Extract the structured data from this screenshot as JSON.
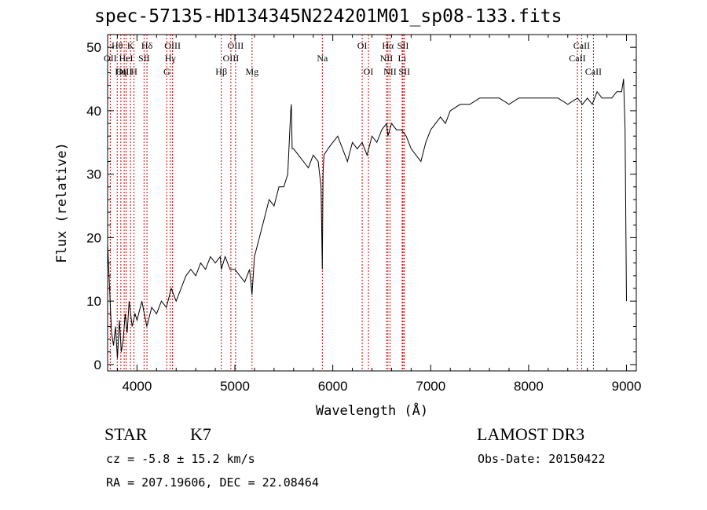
{
  "chart_data": {
    "type": "line",
    "title": "spec-57135-HD134345N224201M01_sp08-133.fits",
    "xlabel": "Wavelength (Å)",
    "ylabel": "Flux (relative)",
    "xlim": [
      3700,
      9100
    ],
    "ylim": [
      -1,
      52
    ],
    "xticks": [
      4000,
      5000,
      6000,
      7000,
      8000,
      9000
    ],
    "yticks": [
      0,
      10,
      20,
      30,
      40,
      50
    ],
    "grid": false,
    "series": [
      {
        "color": "#000000",
        "x": [
          3700,
          3720,
          3740,
          3760,
          3780,
          3800,
          3820,
          3840,
          3860,
          3880,
          3900,
          3920,
          3950,
          3980,
          4000,
          4050,
          4100,
          4150,
          4200,
          4250,
          4300,
          4350,
          4400,
          4450,
          4500,
          4550,
          4600,
          4650,
          4700,
          4750,
          4800,
          4850,
          4861,
          4900,
          4950,
          5000,
          5050,
          5100,
          5150,
          5175,
          5200,
          5250,
          5300,
          5350,
          5400,
          5450,
          5500,
          5540,
          5570,
          5577,
          5585,
          5600,
          5650,
          5700,
          5750,
          5800,
          5850,
          5880,
          5893,
          5900,
          5910,
          5950,
          6000,
          6050,
          6100,
          6150,
          6200,
          6250,
          6300,
          6350,
          6400,
          6450,
          6500,
          6550,
          6563,
          6600,
          6650,
          6700,
          6750,
          6800,
          6850,
          6900,
          6950,
          7000,
          7050,
          7100,
          7150,
          7200,
          7300,
          7400,
          7500,
          7600,
          7700,
          7800,
          7900,
          8000,
          8100,
          8200,
          8300,
          8400,
          8500,
          8550,
          8600,
          8650,
          8700,
          8750,
          8800,
          8850,
          8900,
          8950,
          8970,
          8985,
          9000
        ],
        "y": [
          19,
          12,
          5,
          3,
          6,
          1,
          7,
          2,
          4,
          8,
          5,
          10,
          6,
          8,
          7,
          10,
          6,
          9,
          8,
          10,
          9,
          12,
          10,
          12,
          14,
          15,
          14,
          16,
          15,
          17,
          16,
          17,
          15,
          17,
          15,
          15,
          14,
          13,
          15,
          11,
          17,
          20,
          23,
          26,
          25,
          28,
          28,
          30,
          40,
          41,
          34,
          34,
          33,
          32,
          31,
          33,
          32,
          28,
          15,
          30,
          33,
          34,
          35,
          36,
          34,
          32,
          35,
          34,
          35,
          33,
          36,
          35,
          37,
          38,
          36,
          38,
          37,
          37,
          36,
          34,
          33,
          32,
          35,
          37,
          38,
          39,
          38,
          40,
          41,
          41,
          42,
          42,
          42,
          41,
          42,
          42,
          42,
          42,
          42,
          41,
          42,
          41,
          42,
          41,
          43,
          42,
          42,
          42,
          43,
          43,
          45,
          37,
          10
        ]
      }
    ],
    "line_labels": [
      {
        "label": "Hθ",
        "x": 3798,
        "row": 1
      },
      {
        "label": "OII",
        "x": 3727,
        "row": 2
      },
      {
        "label": "OIII",
        "x": 3869,
        "row": 3
      },
      {
        "label": "K",
        "x": 3934,
        "row": 1
      },
      {
        "label": "HeI",
        "x": 3889,
        "row": 2
      },
      {
        "label": "Hη",
        "x": 3835,
        "row": 3
      },
      {
        "label": "Hδ",
        "x": 4102,
        "row": 1
      },
      {
        "label": "SII",
        "x": 4072,
        "row": 2
      },
      {
        "label": "H",
        "x": 3969,
        "row": 3
      },
      {
        "label": "OIII",
        "x": 4363,
        "row": 1
      },
      {
        "label": "Hγ",
        "x": 4340,
        "row": 2
      },
      {
        "label": "G",
        "x": 4304,
        "row": 3
      },
      {
        "label": "OIII",
        "x": 5007,
        "row": 1
      },
      {
        "label": "OIII",
        "x": 4959,
        "row": 2
      },
      {
        "label": "Hβ",
        "x": 4861,
        "row": 3
      },
      {
        "label": "Mg",
        "x": 5175,
        "row": 3
      },
      {
        "label": "Na",
        "x": 5893,
        "row": 2
      },
      {
        "label": "OI",
        "x": 6300,
        "row": 1
      },
      {
        "label": "OI",
        "x": 6364,
        "row": 3
      },
      {
        "label": "Hα",
        "x": 6563,
        "row": 1
      },
      {
        "label": "SII",
        "x": 6717,
        "row": 1
      },
      {
        "label": "NII",
        "x": 6548,
        "row": 2
      },
      {
        "label": "Li",
        "x": 6708,
        "row": 2
      },
      {
        "label": "NII",
        "x": 6584,
        "row": 3
      },
      {
        "label": "SII",
        "x": 6731,
        "row": 3
      },
      {
        "label": "CaII",
        "x": 8542,
        "row": 1
      },
      {
        "label": "CaII",
        "x": 8498,
        "row": 2
      },
      {
        "label": "CaII",
        "x": 8662,
        "row": 3
      }
    ],
    "marker_color": "#cc0000"
  },
  "info": {
    "class": "STAR",
    "subclass": "K7",
    "survey": "LAMOST DR3",
    "cz": "cz = -5.8 ± 15.2 km/s",
    "obs_date": "Obs-Date: 20150422",
    "radec": "RA = 207.19606, DEC =  22.08464"
  }
}
